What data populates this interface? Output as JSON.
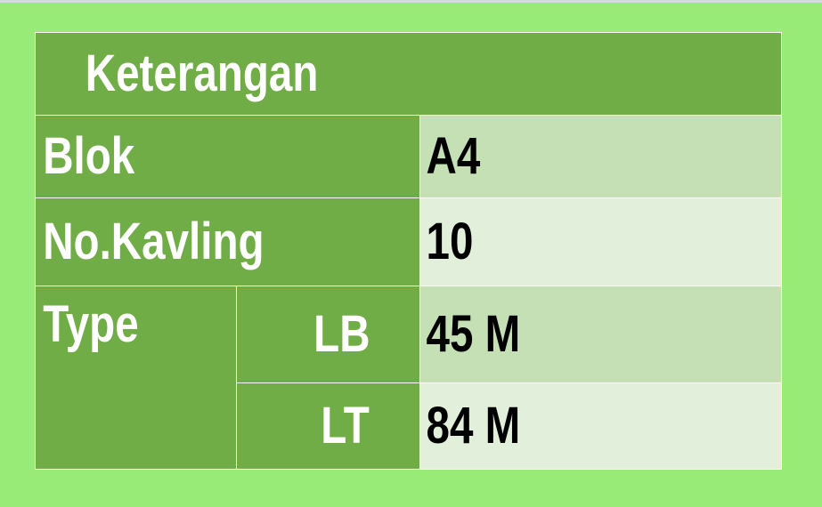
{
  "table": {
    "header": "Keterangan",
    "rows": {
      "blok": {
        "label": "Blok",
        "value": "A4"
      },
      "kavling": {
        "label": "No.Kavling",
        "value": "10"
      },
      "type": {
        "label": "Type",
        "lb": {
          "label": "LB",
          "value": "45 M"
        },
        "lt": {
          "label": "LT",
          "value": "84 M"
        }
      }
    }
  },
  "colors": {
    "page_background": "#98EB77",
    "dark_cell": "#70AD47",
    "value_cell_mid": "#C5E0B4",
    "value_cell_light": "#E2EFDA"
  }
}
